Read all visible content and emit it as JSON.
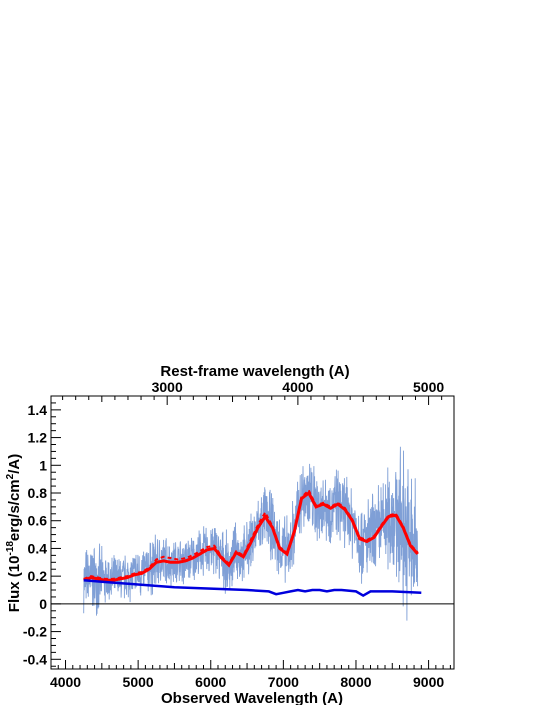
{
  "chart_data": {
    "type": "line",
    "xlabel": "Observed Wavelength (A)",
    "ylabel": "Flux (10^-18 erg/s/cm^2/A)",
    "ylabel_parts": {
      "lead": "Flux (10",
      "exp1": "-18",
      "mid": "erg/s/cm",
      "exp2": "2",
      "tail": "/A)"
    },
    "top_xlabel": "Rest-frame wavelength (A)",
    "xlim": [
      3800,
      9350
    ],
    "ylim": [
      -0.47,
      1.5
    ],
    "x_ticks": [
      "4000",
      "5000",
      "6000",
      "7000",
      "8000",
      "9000"
    ],
    "y_ticks": [
      "-0.4",
      "-0.2",
      "0",
      "0.2",
      "0.4",
      "0.6",
      "0.8",
      "1",
      "1.2",
      "1.4"
    ],
    "top_x_ticks": [
      "3000",
      "4000",
      "5000"
    ],
    "redshift_factor": 1.0,
    "zero_line": true,
    "grid": false,
    "colors": {
      "spectrum": "#7f9fd6",
      "model": "#ff0000",
      "model_dashed": "#ff0000",
      "continuum": "#0000dd",
      "axes": "#000000"
    },
    "series": [
      {
        "style": "noisy-spectrum",
        "x": [
          4250,
          4350,
          4450,
          4550,
          4650,
          4750,
          4850,
          4950,
          5050,
          5150,
          5250,
          5350,
          5450,
          5550,
          5650,
          5750,
          5850,
          5950,
          6050,
          6150,
          6250,
          6350,
          6450,
          6550,
          6650,
          6750,
          6850,
          6950,
          7050,
          7150,
          7250,
          7350,
          7450,
          7550,
          7650,
          7750,
          7850,
          7950,
          8050,
          8150,
          8250,
          8350,
          8450,
          8550,
          8650,
          8750,
          8850
        ],
        "y": [
          0.17,
          0.19,
          0.18,
          0.17,
          0.17,
          0.18,
          0.19,
          0.21,
          0.22,
          0.25,
          0.3,
          0.31,
          0.3,
          0.3,
          0.31,
          0.33,
          0.36,
          0.39,
          0.4,
          0.33,
          0.28,
          0.37,
          0.34,
          0.44,
          0.55,
          0.63,
          0.55,
          0.4,
          0.36,
          0.52,
          0.76,
          0.8,
          0.7,
          0.72,
          0.69,
          0.72,
          0.68,
          0.6,
          0.47,
          0.45,
          0.48,
          0.56,
          0.63,
          0.64,
          0.55,
          0.42,
          0.36
        ],
        "noise": [
          0.25,
          0.3,
          0.28,
          0.22,
          0.2,
          0.2,
          0.2,
          0.22,
          0.22,
          0.24,
          0.24,
          0.22,
          0.2,
          0.2,
          0.2,
          0.2,
          0.2,
          0.22,
          0.24,
          0.24,
          0.24,
          0.24,
          0.24,
          0.24,
          0.26,
          0.28,
          0.28,
          0.28,
          0.3,
          0.32,
          0.34,
          0.34,
          0.32,
          0.3,
          0.3,
          0.3,
          0.3,
          0.32,
          0.34,
          0.36,
          0.38,
          0.4,
          0.45,
          0.55,
          0.65,
          0.7,
          0.6
        ]
      },
      {
        "style": "model-dashed",
        "x": [
          4250,
          4350,
          4450,
          4550,
          4650,
          4750,
          4850,
          4950,
          5050,
          5150,
          5250,
          5350,
          5450,
          5550,
          5650,
          5750,
          5850,
          5950,
          6050,
          6150,
          6250,
          6350,
          6450,
          6550,
          6650,
          6750,
          6850,
          6950,
          7050,
          7150,
          7250,
          7350,
          7450,
          7550,
          7650,
          7750,
          7850,
          7950,
          8050,
          8150,
          8250,
          8350,
          8450,
          8550,
          8650,
          8750,
          8850
        ],
        "y": [
          0.18,
          0.2,
          0.19,
          0.18,
          0.18,
          0.19,
          0.2,
          0.22,
          0.23,
          0.26,
          0.32,
          0.34,
          0.33,
          0.32,
          0.33,
          0.35,
          0.38,
          0.41,
          0.42,
          0.34,
          0.29,
          0.38,
          0.35,
          0.46,
          0.57,
          0.66,
          0.56,
          0.41,
          0.37,
          0.53,
          0.77,
          0.82,
          0.71,
          0.73,
          0.7,
          0.73,
          0.69,
          0.61,
          0.48,
          0.46,
          0.49,
          0.57,
          0.64,
          0.65,
          0.56,
          0.43,
          0.37
        ]
      },
      {
        "style": "model-solid",
        "x": [
          4250,
          4350,
          4450,
          4550,
          4650,
          4750,
          4850,
          4950,
          5050,
          5150,
          5250,
          5350,
          5450,
          5550,
          5650,
          5750,
          5850,
          5950,
          6050,
          6150,
          6250,
          6350,
          6450,
          6550,
          6650,
          6750,
          6850,
          6950,
          7050,
          7150,
          7250,
          7350,
          7450,
          7550,
          7650,
          7750,
          7850,
          7950,
          8050,
          8150,
          8250,
          8350,
          8450,
          8550,
          8650,
          8750,
          8850
        ],
        "y": [
          0.17,
          0.19,
          0.18,
          0.17,
          0.17,
          0.18,
          0.19,
          0.21,
          0.22,
          0.25,
          0.3,
          0.31,
          0.3,
          0.3,
          0.31,
          0.33,
          0.36,
          0.39,
          0.4,
          0.33,
          0.28,
          0.37,
          0.34,
          0.44,
          0.55,
          0.63,
          0.55,
          0.4,
          0.36,
          0.52,
          0.76,
          0.8,
          0.7,
          0.72,
          0.69,
          0.72,
          0.68,
          0.6,
          0.47,
          0.45,
          0.48,
          0.56,
          0.63,
          0.64,
          0.55,
          0.42,
          0.36
        ]
      },
      {
        "style": "continuum",
        "x": [
          4250,
          4500,
          5000,
          5500,
          6000,
          6500,
          6800,
          6900,
          7000,
          7100,
          7200,
          7300,
          7400,
          7500,
          7600,
          7700,
          7800,
          8000,
          8100,
          8200,
          8500,
          8900
        ],
        "y": [
          0.17,
          0.16,
          0.14,
          0.12,
          0.11,
          0.1,
          0.09,
          0.07,
          0.08,
          0.09,
          0.1,
          0.09,
          0.1,
          0.1,
          0.09,
          0.1,
          0.1,
          0.09,
          0.06,
          0.09,
          0.09,
          0.08
        ]
      }
    ]
  }
}
